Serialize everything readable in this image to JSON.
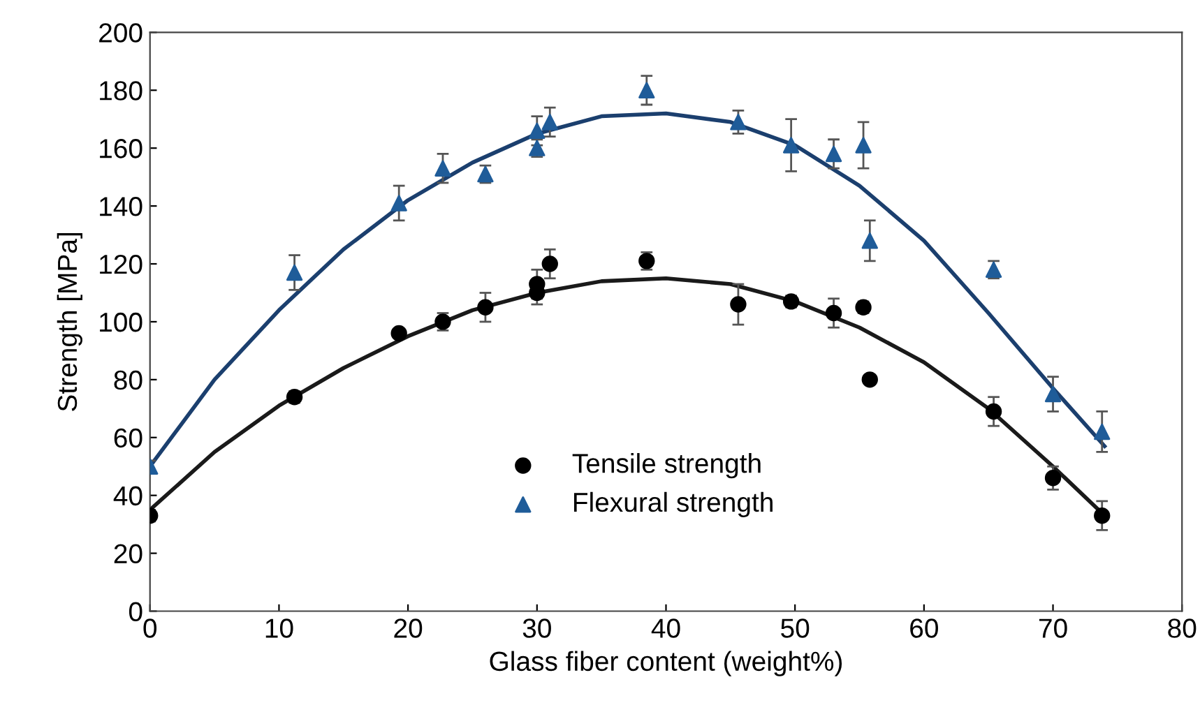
{
  "chart_data": {
    "type": "scatter",
    "xlabel": "Glass fiber content (weight%)",
    "ylabel": "Strength [MPa]",
    "xlim": [
      0,
      80
    ],
    "xticks": [
      0,
      10,
      20,
      30,
      40,
      50,
      60,
      70,
      80
    ],
    "ylim": [
      0,
      200
    ],
    "yticks": [
      0,
      20,
      40,
      60,
      80,
      100,
      120,
      140,
      160,
      180,
      200
    ],
    "grid": false,
    "legend": "bottom",
    "series": [
      {
        "name": "Tensile strength",
        "marker": "circle",
        "color": "#000000",
        "x": [
          0,
          11.2,
          19.3,
          22.7,
          26,
          30,
          30,
          31,
          38.5,
          45.6,
          49.7,
          53,
          55.3,
          55.8,
          65.4,
          70,
          73.8
        ],
        "values": [
          33,
          74,
          96,
          100,
          105,
          113,
          110,
          120,
          121,
          106,
          107,
          103,
          105,
          80,
          69,
          46,
          33
        ],
        "errors": [
          2,
          2,
          1.5,
          3,
          5,
          5,
          4,
          5,
          3,
          7,
          2,
          5,
          2,
          null,
          5,
          4,
          5
        ]
      },
      {
        "name": "Flexural strength",
        "marker": "triangle",
        "color": "#1f5c99",
        "x": [
          0,
          11.2,
          19.3,
          22.7,
          26,
          30,
          30,
          31,
          38.5,
          45.6,
          49.7,
          53,
          55.3,
          55.8,
          65.4,
          70,
          73.8
        ],
        "values": [
          50,
          117,
          141,
          153,
          151,
          160,
          166,
          169,
          180,
          169,
          161,
          158,
          161,
          128,
          118,
          75,
          62
        ],
        "errors": [
          2,
          6,
          6,
          5,
          3,
          3,
          5,
          5,
          5,
          4,
          9,
          5,
          8,
          7,
          3,
          6,
          7
        ]
      },
      {
        "type": "line",
        "color": "#1a1a1a",
        "x": [
          0,
          5,
          10,
          15,
          20,
          25,
          30,
          35,
          40,
          45,
          50,
          55,
          60,
          65,
          70,
          74
        ],
        "values": [
          35,
          55,
          71,
          84,
          95,
          104,
          110,
          114,
          115,
          113,
          107,
          98,
          86,
          70,
          50,
          33
        ]
      },
      {
        "type": "line",
        "color": "#1b3f6e",
        "x": [
          0,
          5,
          10,
          15,
          20,
          25,
          30,
          35,
          40,
          45,
          50,
          55,
          60,
          65,
          70,
          74
        ],
        "values": [
          50,
          80,
          104,
          125,
          142,
          155,
          165,
          171,
          172,
          169,
          161,
          147,
          128,
          103,
          77,
          57
        ]
      }
    ]
  }
}
